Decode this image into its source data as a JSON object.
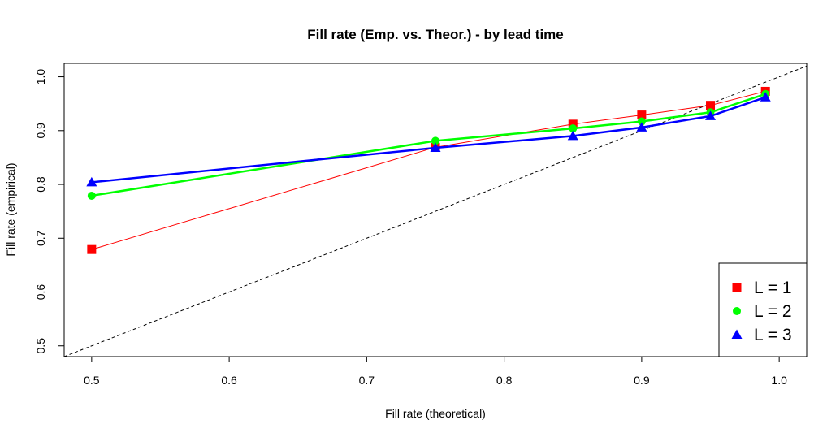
{
  "chart_data": {
    "type": "line",
    "title": "Fill rate (Emp. vs. Theor.) - by lead time",
    "xlabel": "Fill rate (theoretical)",
    "ylabel": "Fill rate (empirical)",
    "xlim": [
      0.48,
      1.02
    ],
    "ylim": [
      0.48,
      1.025
    ],
    "xticks": [
      0.5,
      0.6,
      0.7,
      0.8,
      0.9,
      1.0
    ],
    "xtick_labels": [
      "0.5",
      "0.6",
      "0.7",
      "0.8",
      "0.9",
      "1.0"
    ],
    "yticks": [
      0.5,
      0.6,
      0.7,
      0.8,
      0.9,
      1.0
    ],
    "ytick_labels": [
      "0.5",
      "0.6",
      "0.7",
      "0.8",
      "0.9",
      "1.0"
    ],
    "grid": false,
    "legend_position": "bottom-right",
    "reference_line": {
      "style": "dashed",
      "color": "#000000",
      "from": [
        0.48,
        0.48
      ],
      "to": [
        1.02,
        1.02
      ]
    },
    "x": [
      0.5,
      0.75,
      0.85,
      0.9,
      0.95,
      0.99
    ],
    "series": [
      {
        "name": "L = 1",
        "marker": "square",
        "color": "#ff0000",
        "line_width": 1,
        "values": [
          0.679,
          0.869,
          0.912,
          0.929,
          0.947,
          0.973
        ]
      },
      {
        "name": "L = 2",
        "marker": "circle",
        "color": "#00ff00",
        "line_width": 2.5,
        "values": [
          0.779,
          0.881,
          0.904,
          0.917,
          0.934,
          0.968
        ]
      },
      {
        "name": "L = 3",
        "marker": "triangle",
        "color": "#0000ff",
        "line_width": 2.5,
        "values": [
          0.804,
          0.868,
          0.89,
          0.906,
          0.927,
          0.962
        ]
      }
    ]
  }
}
